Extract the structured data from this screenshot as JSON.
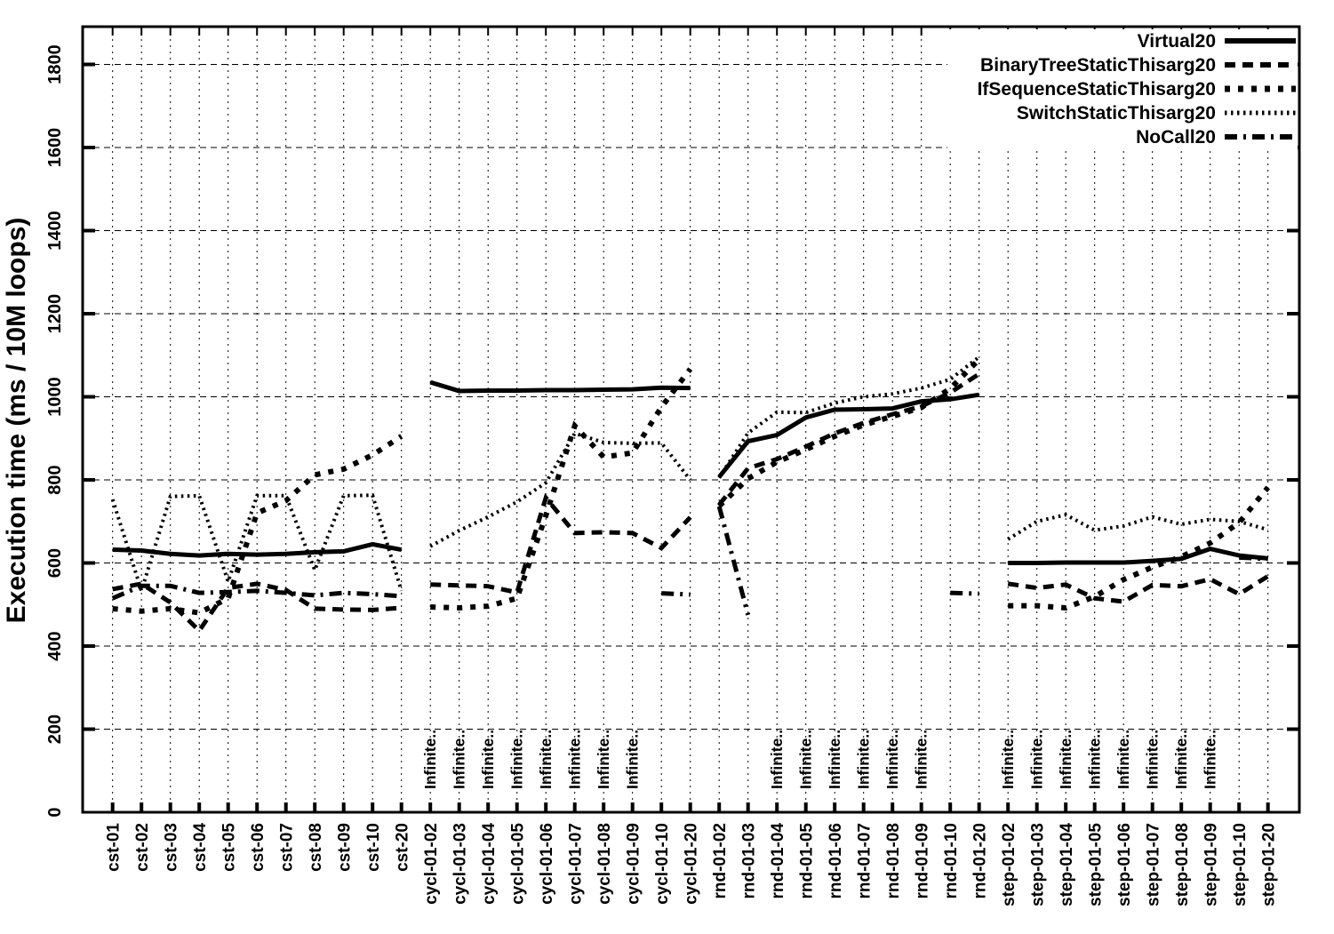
{
  "chart_data": {
    "type": "line",
    "title": "",
    "ylabel": "Execution time (ms / 10M loops)",
    "ylim": [
      0,
      1890
    ],
    "yticks": [
      0,
      200,
      400,
      600,
      800,
      1000,
      1200,
      1400,
      1600,
      1800
    ],
    "grid": true,
    "legend_position": "top-right",
    "line_color": "#000000",
    "background_color": "#ffffff",
    "group_sizes": [
      11,
      10,
      10,
      10
    ],
    "categories": [
      "cst-01",
      "cst-02",
      "cst-03",
      "cst-04",
      "cst-05",
      "cst-06",
      "cst-07",
      "cst-08",
      "cst-09",
      "cst-10",
      "cst-20",
      "cycl-01-02",
      "cycl-01-03",
      "cycl-01-04",
      "cycl-01-05",
      "cycl-01-06",
      "cycl-01-07",
      "cycl-01-08",
      "cycl-01-09",
      "cycl-01-10",
      "cycl-01-20",
      "rnd-01-02",
      "rnd-01-03",
      "rnd-01-04",
      "rnd-01-05",
      "rnd-01-06",
      "rnd-01-07",
      "rnd-01-08",
      "rnd-01-09",
      "rnd-01-10",
      "rnd-01-20",
      "step-01-02",
      "step-01-03",
      "step-01-04",
      "step-01-05",
      "step-01-06",
      "step-01-07",
      "step-01-08",
      "step-01-09",
      "step-01-10",
      "step-01-20"
    ],
    "series": [
      {
        "name": "Virtual20",
        "style": "solid",
        "values": [
          [
            632,
            630,
            622,
            618,
            622,
            620,
            622,
            626,
            628,
            645,
            632
          ],
          [
            1035,
            1014,
            1015,
            1015,
            1016,
            1016,
            1017,
            1018,
            1022,
            1021
          ],
          [
            807,
            893,
            908,
            950,
            969,
            970,
            972,
            989,
            994,
            1005
          ],
          [
            600,
            600,
            601,
            601,
            601,
            605,
            610,
            634,
            618,
            611
          ]
        ]
      },
      {
        "name": "BinaryTreeStaticThisarg20",
        "style": "dashed",
        "values": [
          [
            537,
            550,
            505,
            437,
            540,
            550,
            535,
            490,
            488,
            487,
            492
          ],
          [
            548,
            546,
            544,
            529,
            757,
            672,
            674,
            672,
            636,
            710
          ],
          [
            740,
            828,
            850,
            880,
            912,
            937,
            958,
            977,
            1010,
            1055
          ],
          [
            550,
            540,
            548,
            515,
            507,
            547,
            544,
            561,
            525,
            568
          ]
        ]
      },
      {
        "name": "IfSequenceStaticThisarg20",
        "style": "dotted-large",
        "values": [
          [
            490,
            484,
            490,
            480,
            515,
            720,
            750,
            812,
            826,
            860,
            905
          ],
          [
            494,
            492,
            496,
            515,
            714,
            930,
            855,
            865,
            975,
            1067
          ],
          [
            737,
            803,
            843,
            873,
            905,
            932,
            953,
            974,
            1020,
            1090
          ],
          [
            497,
            497,
            492,
            519,
            560,
            590,
            615,
            648,
            697,
            782
          ]
        ]
      },
      {
        "name": "SwitchStaticThisarg20",
        "style": "dotted-fine",
        "values": [
          [
            753,
            533,
            760,
            762,
            555,
            762,
            762,
            583,
            762,
            763,
            533
          ],
          [
            640,
            678,
            711,
            747,
            793,
            912,
            890,
            888,
            889,
            800
          ],
          [
            805,
            913,
            963,
            962,
            985,
            1000,
            1007,
            1021,
            1042,
            1096
          ],
          [
            657,
            700,
            716,
            679,
            689,
            711,
            693,
            705,
            700,
            680
          ]
        ]
      },
      {
        "name": "NoCall20",
        "style": "dash-dot",
        "values": [
          [
            515,
            545,
            545,
            528,
            530,
            533,
            528,
            522,
            528,
            525,
            520
          ],
          [
            null,
            null,
            null,
            null,
            null,
            null,
            null,
            null,
            527,
            524
          ],
          [
            736,
            475,
            null,
            null,
            null,
            null,
            null,
            null,
            528,
            526
          ],
          [
            null,
            null,
            null,
            null,
            null,
            null,
            null,
            null,
            613,
            610
          ]
        ]
      }
    ],
    "annotations": {
      "label": "Infinite..",
      "tick_indices": [
        11,
        12,
        13,
        14,
        15,
        16,
        17,
        18,
        23,
        24,
        25,
        26,
        27,
        28,
        31,
        32,
        33,
        34,
        35,
        36,
        37,
        38
      ]
    }
  }
}
